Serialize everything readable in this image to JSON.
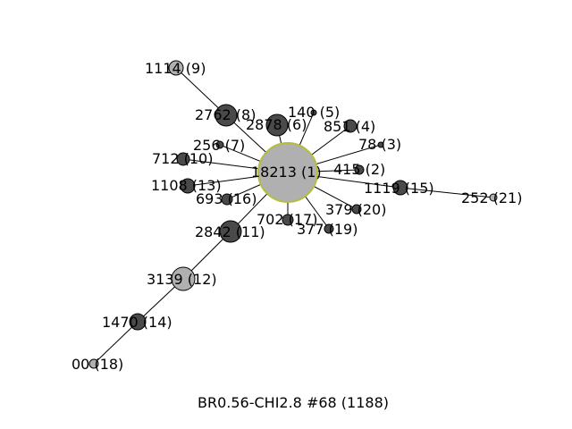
{
  "caption": "BR0.56-CHI2.8 #68 (1188)",
  "colors": {
    "center_fill": "#b0b0b0",
    "center_stroke": "#b5bd3c",
    "dark_fill": "#4a4a4a",
    "light_fill": "#b0b0b0",
    "edge": "#000000"
  },
  "nodes": [
    {
      "id": "n1",
      "label": "18213 (1)",
      "shade": "center"
    },
    {
      "id": "n2",
      "label": "415 (2)",
      "shade": "dark"
    },
    {
      "id": "n3",
      "label": "78 (3)",
      "shade": "dark"
    },
    {
      "id": "n4",
      "label": "851 (4)",
      "shade": "dark"
    },
    {
      "id": "n5",
      "label": "140 (5)",
      "shade": "dark"
    },
    {
      "id": "n6",
      "label": "2878 (6)",
      "shade": "dark"
    },
    {
      "id": "n7",
      "label": "256 (7)",
      "shade": "dark"
    },
    {
      "id": "n8",
      "label": "2762 (8)",
      "shade": "dark"
    },
    {
      "id": "n9",
      "label": "1114 (9)",
      "shade": "light"
    },
    {
      "id": "n10",
      "label": "712 (10)",
      "shade": "dark"
    },
    {
      "id": "n11",
      "label": "2842 (11)",
      "shade": "dark"
    },
    {
      "id": "n12",
      "label": "3139 (12)",
      "shade": "light"
    },
    {
      "id": "n13",
      "label": "1108 (13)",
      "shade": "dark"
    },
    {
      "id": "n14",
      "label": "1470 (14)",
      "shade": "dark"
    },
    {
      "id": "n15",
      "label": "1119 (15)",
      "shade": "dark"
    },
    {
      "id": "n16",
      "label": "693 (16)",
      "shade": "dark"
    },
    {
      "id": "n17",
      "label": "702 (17)",
      "shade": "dark"
    },
    {
      "id": "n18",
      "label": "00 (18)",
      "shade": "light"
    },
    {
      "id": "n19",
      "label": "377 (19)",
      "shade": "dark"
    },
    {
      "id": "n20",
      "label": "379 (20)",
      "shade": "dark"
    },
    {
      "id": "n21",
      "label": "252 (21)",
      "shade": "light"
    }
  ],
  "edges": [
    [
      "n1",
      "n2"
    ],
    [
      "n1",
      "n3"
    ],
    [
      "n1",
      "n4"
    ],
    [
      "n1",
      "n5"
    ],
    [
      "n1",
      "n6"
    ],
    [
      "n1",
      "n7"
    ],
    [
      "n1",
      "n8"
    ],
    [
      "n8",
      "n9"
    ],
    [
      "n1",
      "n10"
    ],
    [
      "n1",
      "n11"
    ],
    [
      "n11",
      "n12"
    ],
    [
      "n1",
      "n13"
    ],
    [
      "n12",
      "n14"
    ],
    [
      "n1",
      "n15"
    ],
    [
      "n15",
      "n21"
    ],
    [
      "n1",
      "n16"
    ],
    [
      "n1",
      "n17"
    ],
    [
      "n14",
      "n18"
    ],
    [
      "n1",
      "n19"
    ],
    [
      "n1",
      "n20"
    ]
  ]
}
